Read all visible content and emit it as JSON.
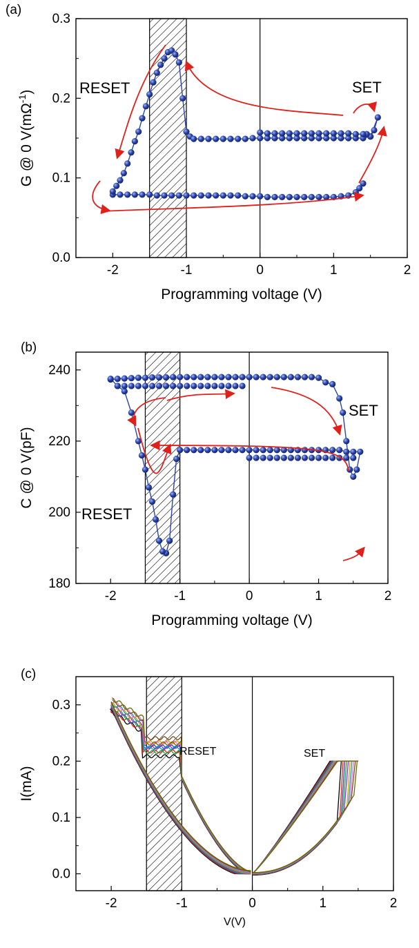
{
  "figure": {
    "panels": [
      {
        "id": "a",
        "label": "(a)",
        "xlabel": "Programming voltage (V)",
        "ylabel": "G @ 0 V(mΩ-1)",
        "xticks": [
          "-2",
          "-1",
          "0",
          "1",
          "2"
        ],
        "yticks": [
          "0.0",
          "0.1",
          "0.2",
          "0.3"
        ],
        "annotations": [
          "RESET",
          "SET"
        ]
      },
      {
        "id": "b",
        "label": "(b)",
        "xlabel": "Programming voltage (V)",
        "ylabel": "C @ 0 V(pF)",
        "xticks": [
          "-2",
          "-1",
          "0",
          "1",
          "2"
        ],
        "yticks": [
          "180",
          "200",
          "220",
          "240"
        ],
        "annotations": [
          "RESET",
          "SET"
        ]
      },
      {
        "id": "c",
        "label": "(c)",
        "xlabel": "V(V)",
        "ylabel": "I(mA)",
        "xticks": [
          "-2",
          "-1",
          "0",
          "1",
          "2"
        ],
        "yticks": [
          "0.0",
          "0.1",
          "0.2",
          "0.3"
        ],
        "annotations": [
          "RESET",
          "SET"
        ]
      }
    ]
  },
  "chart_data": [
    {
      "panel": "a",
      "type": "line",
      "xlim": [
        -2.5,
        2.0
      ],
      "ylim": [
        0.0,
        0.3
      ],
      "hatched_region_x": [
        -1.5,
        -1.0
      ],
      "vertical_line_x": 0,
      "marker_color": "#2b45a8",
      "arrow_color": "#e0201b",
      "series": [
        {
          "x": [
            1.4,
            1.35,
            1.3,
            1.2,
            1.1,
            1.0,
            0.9,
            0.8,
            0.7,
            0.6,
            0.5,
            0.4,
            0.3,
            0.2,
            0.1,
            0.0,
            -0.1,
            -0.2,
            -0.3,
            -0.4,
            -0.5,
            -0.6,
            -0.7,
            -0.8,
            -0.9,
            -1.0,
            -1.1,
            -1.2,
            -1.3,
            -1.4,
            -1.5,
            -1.6,
            -1.7,
            -1.8,
            -1.9,
            -2.0,
            -2.0,
            -1.95,
            -1.9,
            -1.85,
            -1.8,
            -1.75,
            -1.7,
            -1.65,
            -1.6,
            -1.55,
            -1.5,
            -1.45,
            -1.4,
            -1.35,
            -1.3,
            -1.25,
            -1.2,
            -1.15,
            -1.1,
            -1.05,
            -1.0,
            -0.95,
            -0.9,
            -0.8,
            -0.7,
            -0.6,
            -0.5,
            -0.4,
            -0.3,
            -0.2,
            -0.1,
            0.0,
            0.1,
            0.2,
            0.3,
            0.4,
            0.5,
            0.6,
            0.7,
            0.8,
            0.9,
            1.0,
            1.1,
            1.2,
            1.3,
            1.4,
            1.5,
            1.55,
            1.6,
            1.5,
            1.45,
            1.4,
            1.3,
            1.2,
            1.1,
            1.0,
            0.9,
            0.8,
            0.7,
            0.6,
            0.5,
            0.4,
            0.3,
            0.2,
            0.1,
            0.0
          ],
          "y": [
            0.093,
            0.087,
            0.082,
            0.078,
            0.077,
            0.076,
            0.076,
            0.076,
            0.076,
            0.076,
            0.076,
            0.076,
            0.076,
            0.076,
            0.076,
            0.077,
            0.077,
            0.077,
            0.078,
            0.078,
            0.078,
            0.078,
            0.078,
            0.078,
            0.078,
            0.078,
            0.078,
            0.078,
            0.078,
            0.078,
            0.079,
            0.079,
            0.079,
            0.079,
            0.079,
            0.079,
            0.083,
            0.09,
            0.097,
            0.106,
            0.118,
            0.132,
            0.146,
            0.158,
            0.175,
            0.19,
            0.205,
            0.22,
            0.232,
            0.242,
            0.25,
            0.258,
            0.26,
            0.255,
            0.245,
            0.2,
            0.158,
            0.152,
            0.149,
            0.149,
            0.149,
            0.149,
            0.149,
            0.149,
            0.149,
            0.149,
            0.15,
            0.15,
            0.15,
            0.15,
            0.15,
            0.15,
            0.15,
            0.15,
            0.15,
            0.15,
            0.15,
            0.15,
            0.15,
            0.15,
            0.15,
            0.15,
            0.152,
            0.16,
            0.176,
            0.152,
            0.155,
            0.155,
            0.155,
            0.156,
            0.156,
            0.156,
            0.156,
            0.156,
            0.156,
            0.156,
            0.156,
            0.156,
            0.156,
            0.156,
            0.156,
            0.157
          ]
        }
      ]
    },
    {
      "panel": "b",
      "type": "line",
      "xlim": [
        -2.5,
        2.0
      ],
      "ylim": [
        180,
        245
      ],
      "hatched_region_x": [
        -1.5,
        -1.0
      ],
      "vertical_line_x": 0,
      "marker_color": "#2b45a8",
      "arrow_color": "#e0201b",
      "series": [
        {
          "x": [
            -2.0,
            -1.9,
            -1.8,
            -1.7,
            -1.6,
            -1.5,
            -1.4,
            -1.3,
            -1.2,
            -1.1,
            -1.0,
            -0.9,
            -0.8,
            -0.7,
            -0.6,
            -0.5,
            -0.4,
            -0.3,
            -0.2,
            -0.1,
            0.0,
            0.1,
            0.2,
            0.3,
            0.4,
            0.5,
            0.6,
            0.7,
            0.8,
            0.9,
            1.0,
            1.1,
            1.2,
            1.3,
            1.35,
            1.4,
            1.45,
            1.5,
            1.55,
            1.6,
            1.5,
            1.4,
            1.3,
            1.2,
            1.1,
            1.0,
            0.9,
            0.8,
            0.7,
            0.6,
            0.5,
            0.4,
            0.3,
            0.2,
            0.1,
            0.0,
            -0.1,
            -0.2,
            -0.3,
            -0.4,
            -0.5,
            -0.6,
            -0.7,
            -0.8,
            -0.9,
            -1.0,
            -1.05,
            -1.1,
            -1.15,
            -1.2,
            -1.25,
            -1.3,
            -1.35,
            -1.4,
            -1.45,
            -1.5,
            -1.55,
            -1.6,
            -1.7,
            -1.8,
            -1.9,
            -2.0
          ],
          "y": [
            237.3,
            237.5,
            237.6,
            237.7,
            237.8,
            237.8,
            237.9,
            237.9,
            237.9,
            238.0,
            238.0,
            238.0,
            238.0,
            238.0,
            238.0,
            238.0,
            238.0,
            238.0,
            238.0,
            238.0,
            238.0,
            238.0,
            238.0,
            238.0,
            238.0,
            238.0,
            238.0,
            238.0,
            238.0,
            238.0,
            237.8,
            236.5,
            236.0,
            232.0,
            228.0,
            220.0,
            212.0,
            210.0,
            212.0,
            217.0,
            217.0,
            217.0,
            217.5,
            217.5,
            217.5,
            217.5,
            217.5,
            217.5,
            217.5,
            217.5,
            217.5,
            217.5,
            217.5,
            217.5,
            217.5,
            217.5,
            217.5,
            217.5,
            217.5,
            217.5,
            217.5,
            217.5,
            217.5,
            217.5,
            217.5,
            217.5,
            215.0,
            205.0,
            192.0,
            188.5,
            189.0,
            192.0,
            198.0,
            203.0,
            207.0,
            212.0,
            216.0,
            220.0,
            228.0,
            234.0,
            235.5,
            237.5
          ]
        }
      ]
    },
    {
      "panel": "c",
      "type": "line",
      "xlim": [
        -2.5,
        2.0
      ],
      "ylim": [
        -0.03,
        0.35
      ],
      "hatched_region_x": [
        -1.5,
        -1.0
      ],
      "vertical_line_x": 0,
      "colors": [
        "#000000",
        "#e0201b",
        "#2b45a8",
        "#1aa33b",
        "#8a2be2",
        "#d4a000",
        "#00a0c0",
        "#ff66cc",
        "#7a4a1a",
        "#6a6a00"
      ],
      "series": [
        {
          "x": [
            -2.0,
            -1.8,
            -1.6,
            -1.4,
            -1.2,
            -1.0,
            -0.8,
            -0.6,
            -0.4,
            -0.2,
            0.0,
            0.2,
            0.4,
            0.6,
            0.8,
            1.0,
            1.1,
            1.2,
            1.3,
            1.35,
            1.4,
            1.45,
            1.5
          ],
          "y": [
            0.3,
            0.27,
            0.25,
            0.245,
            0.23,
            0.17,
            0.13,
            0.09,
            0.055,
            0.025,
            0.0,
            0.01,
            0.025,
            0.045,
            0.07,
            0.09,
            0.1,
            0.115,
            0.12,
            0.125,
            0.13,
            0.2,
            0.2
          ]
        }
      ]
    }
  ]
}
